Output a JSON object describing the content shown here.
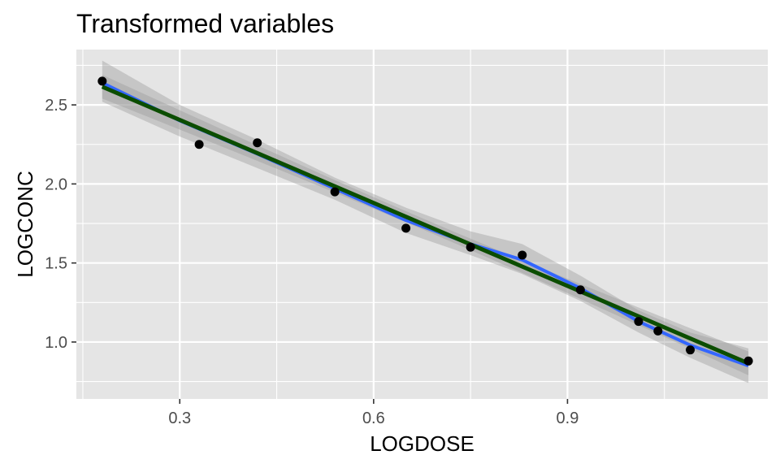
{
  "chart_data": {
    "type": "scatter",
    "title": "Transformed variables",
    "xlabel": "LOGDOSE",
    "ylabel": "LOGCONC",
    "xlim": [
      0.14,
      1.21
    ],
    "ylim": [
      0.64,
      2.85
    ],
    "x_ticks": [
      0.3,
      0.6,
      0.9
    ],
    "x_tick_labels": [
      "0.3",
      "0.6",
      "0.9"
    ],
    "y_ticks": [
      1.0,
      1.5,
      2.0,
      2.5
    ],
    "y_tick_labels": [
      "1.0",
      "1.5",
      "2.0",
      "2.5"
    ],
    "grid": true,
    "points": [
      {
        "x": 0.18,
        "y": 2.65
      },
      {
        "x": 0.33,
        "y": 2.25
      },
      {
        "x": 0.42,
        "y": 2.26
      },
      {
        "x": 0.54,
        "y": 1.95
      },
      {
        "x": 0.65,
        "y": 1.72
      },
      {
        "x": 0.75,
        "y": 1.6
      },
      {
        "x": 0.83,
        "y": 1.55
      },
      {
        "x": 0.92,
        "y": 1.33
      },
      {
        "x": 1.01,
        "y": 1.13
      },
      {
        "x": 1.04,
        "y": 1.07
      },
      {
        "x": 1.09,
        "y": 0.95
      },
      {
        "x": 1.18,
        "y": 0.88
      }
    ],
    "smooth_fit": {
      "method": "loess",
      "color": "#3366FF",
      "fit": [
        {
          "x": 0.18,
          "y": 2.64
        },
        {
          "x": 0.3,
          "y": 2.4
        },
        {
          "x": 0.42,
          "y": 2.19
        },
        {
          "x": 0.54,
          "y": 1.97
        },
        {
          "x": 0.65,
          "y": 1.77
        },
        {
          "x": 0.75,
          "y": 1.62
        },
        {
          "x": 0.83,
          "y": 1.52
        },
        {
          "x": 0.92,
          "y": 1.34
        },
        {
          "x": 1.01,
          "y": 1.13
        },
        {
          "x": 1.09,
          "y": 0.98
        },
        {
          "x": 1.18,
          "y": 0.85
        }
      ],
      "band_upper": [
        2.78,
        2.5,
        2.28,
        2.04,
        1.85,
        1.7,
        1.62,
        1.42,
        1.2,
        1.06,
        0.96
      ],
      "band_lower": [
        2.52,
        2.3,
        2.1,
        1.9,
        1.69,
        1.55,
        1.43,
        1.26,
        1.06,
        0.9,
        0.74
      ]
    },
    "linear_fit": {
      "method": "lm",
      "color": "#0B4D00",
      "intercept": 2.93,
      "slope": -1.75,
      "x_range": [
        0.18,
        1.18
      ],
      "band_halfwidth_ends": 0.075,
      "band_halfwidth_center": 0.035
    },
    "colors": {
      "panel": "#E5E5E5",
      "grid": "#FFFFFF",
      "points": "#000000",
      "band": "#999999"
    }
  }
}
